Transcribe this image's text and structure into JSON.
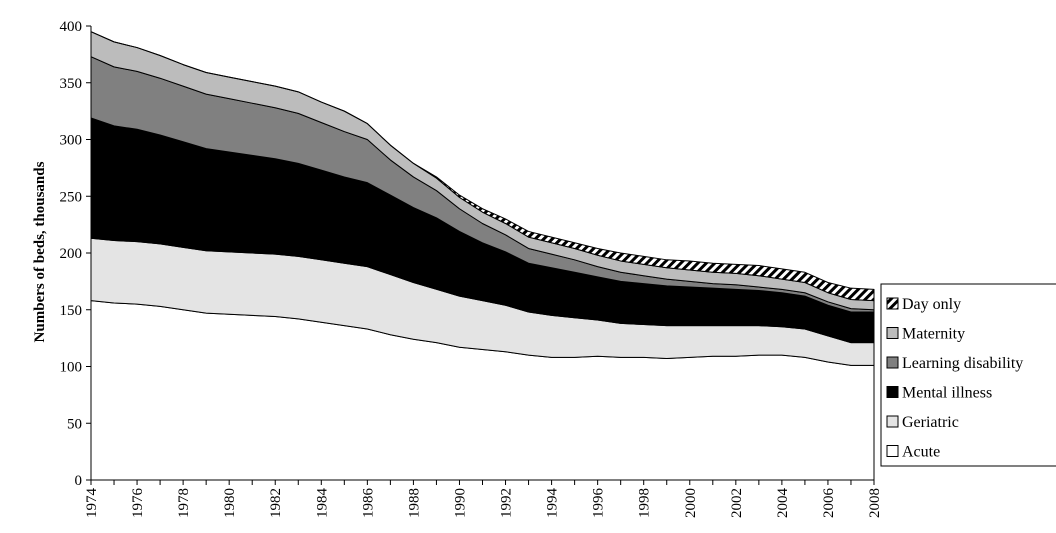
{
  "chart_data": {
    "type": "area",
    "stacked": true,
    "ylabel": "Numbers of beds, thousands",
    "xlabel": "",
    "ylim": [
      0,
      400
    ],
    "yticks": [
      0,
      50,
      100,
      150,
      200,
      250,
      300,
      350,
      400
    ],
    "xlim": [
      1974,
      2008
    ],
    "xticks": [
      1974,
      1976,
      1978,
      1980,
      1982,
      1984,
      1986,
      1988,
      1990,
      1992,
      1994,
      1996,
      1998,
      2000,
      2002,
      2004,
      2006,
      2008
    ],
    "x": [
      1974,
      1975,
      1976,
      1977,
      1978,
      1979,
      1980,
      1981,
      1982,
      1983,
      1984,
      1985,
      1986,
      1987,
      1988,
      1989,
      1990,
      1991,
      1992,
      1993,
      1994,
      1995,
      1996,
      1997,
      1998,
      1999,
      2000,
      2001,
      2002,
      2003,
      2004,
      2005,
      2006,
      2007,
      2008
    ],
    "legend_position": "right",
    "grid": false,
    "series": [
      {
        "name": "Acute",
        "color": "#ffffff",
        "values": [
          158,
          156,
          155,
          153,
          150,
          147,
          146,
          145,
          144,
          142,
          139,
          136,
          133,
          128,
          124,
          121,
          117,
          115,
          113,
          110,
          108,
          108,
          109,
          108,
          108,
          107,
          108,
          109,
          109,
          110,
          110,
          108,
          104,
          101,
          101
        ]
      },
      {
        "name": "Geriatric",
        "color": "#e4e4e4",
        "values": [
          55,
          55,
          55,
          55,
          55,
          55,
          55,
          55,
          55,
          55,
          55,
          55,
          55,
          53,
          50,
          47,
          45,
          43,
          41,
          38,
          37,
          35,
          32,
          30,
          29,
          29,
          28,
          27,
          27,
          26,
          25,
          25,
          23,
          20,
          20
        ]
      },
      {
        "name": "Mental illness",
        "color": "#000000",
        "values": [
          106,
          101,
          99,
          96,
          93,
          90,
          88,
          86,
          84,
          82,
          79,
          76,
          74,
          70,
          66,
          63,
          57,
          51,
          47,
          43,
          42,
          40,
          38,
          37,
          36,
          35,
          34,
          33,
          32,
          31,
          30,
          29,
          27,
          27,
          27
        ]
      },
      {
        "name": "Learning disability",
        "color": "#808080",
        "values": [
          54,
          52,
          51,
          50,
          49,
          48,
          47,
          46,
          45,
          44,
          42,
          40,
          38,
          31,
          27,
          24,
          20,
          17,
          15,
          13,
          12,
          11,
          9,
          8,
          7,
          6,
          5,
          4,
          4,
          3,
          3,
          3,
          3,
          3,
          2
        ]
      },
      {
        "name": "Maternity",
        "color": "#bcbcbc",
        "values": [
          22,
          22,
          21,
          20,
          19,
          19,
          19,
          19,
          19,
          19,
          18,
          18,
          14,
          13,
          12,
          11,
          10,
          10,
          10,
          10,
          10,
          10,
          10,
          10,
          10,
          10,
          10,
          10,
          10,
          10,
          9,
          9,
          8,
          8,
          8
        ]
      },
      {
        "name": "Day only",
        "color": "#ffffff",
        "pattern": "diagonal-stripes",
        "values": [
          0,
          0,
          0,
          0,
          0,
          0,
          0,
          0,
          0,
          0,
          0,
          0,
          0,
          0,
          0,
          1,
          2,
          3,
          4,
          5,
          5,
          5,
          6,
          7,
          7,
          7,
          8,
          8,
          8,
          9,
          9,
          9,
          9,
          10,
          10
        ]
      }
    ]
  }
}
